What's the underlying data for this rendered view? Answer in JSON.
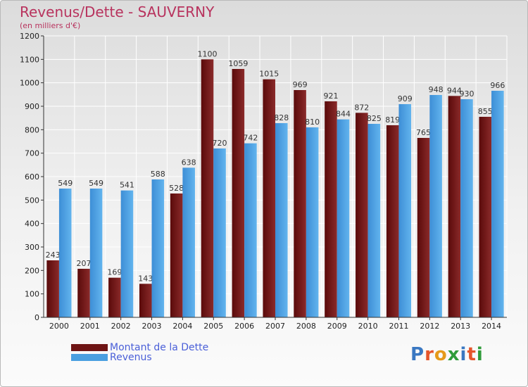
{
  "title": "Revenus/Dette - SAUVERNY",
  "subtitle": "(en milliers d'€)",
  "logo": {
    "text": "Proxiti",
    "colors": [
      "#3a78c2",
      "#e5552b",
      "#e59a1a",
      "#2f9b3a",
      "#3a78c2",
      "#e5552b",
      "#2f9b3a"
    ]
  },
  "legend": [
    {
      "name": "Montant de la Dette",
      "color": "#6e1414"
    },
    {
      "name": "Revenus",
      "color": "#4a9fe0"
    }
  ],
  "chart_data": {
    "type": "bar",
    "title": "Revenus/Dette - SAUVERNY",
    "subtitle": "(en milliers d'€)",
    "categories": [
      "2000",
      "2001",
      "2002",
      "2003",
      "2004",
      "2005",
      "2006",
      "2007",
      "2008",
      "2009",
      "2010",
      "2011",
      "2012",
      "2013",
      "2014"
    ],
    "series": [
      {
        "name": "Montant de la Dette",
        "color": "#6e1414",
        "values": [
          243,
          207,
          169,
          143,
          528,
          1100,
          1059,
          1015,
          969,
          921,
          872,
          819,
          765,
          944,
          855
        ]
      },
      {
        "name": "Revenus",
        "color": "#4a9fe0",
        "values": [
          549,
          549,
          541,
          588,
          638,
          720,
          742,
          828,
          810,
          844,
          825,
          909,
          948,
          930,
          966
        ]
      }
    ],
    "ylim": [
      0,
      1200
    ],
    "yticks": [
      0,
      100,
      200,
      300,
      400,
      500,
      600,
      700,
      800,
      900,
      1000,
      1100,
      1200
    ],
    "grid": true,
    "legend_position": "bottom-left"
  }
}
